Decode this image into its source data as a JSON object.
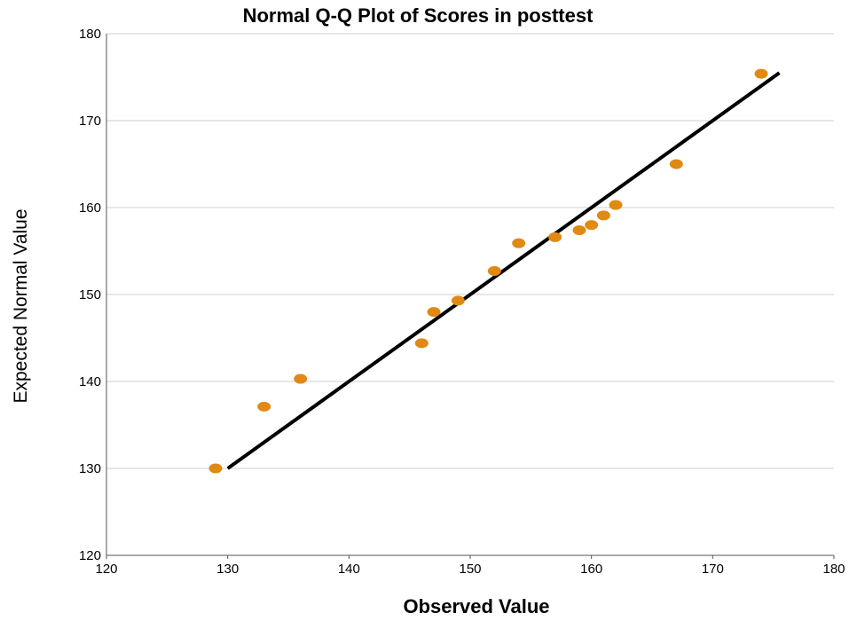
{
  "chart_data": {
    "type": "scatter",
    "title": "Normal Q-Q Plot of Scores in posttest",
    "xlabel": "Observed Value",
    "ylabel": "Expected Normal Value",
    "xlim": [
      120,
      180
    ],
    "ylim": [
      120,
      180
    ],
    "xticks": [
      120,
      130,
      140,
      150,
      160,
      170,
      180
    ],
    "yticks": [
      120,
      130,
      140,
      150,
      160,
      170,
      180
    ],
    "grid": "horizontal",
    "legend": "none",
    "point_color": "#E08A14",
    "line_color": "#000000",
    "points": [
      {
        "x": 129,
        "y": 130.0
      },
      {
        "x": 133,
        "y": 137.1
      },
      {
        "x": 136,
        "y": 140.3
      },
      {
        "x": 146,
        "y": 144.4
      },
      {
        "x": 147,
        "y": 148.0
      },
      {
        "x": 149,
        "y": 149.3
      },
      {
        "x": 152,
        "y": 152.7
      },
      {
        "x": 154,
        "y": 155.9
      },
      {
        "x": 157,
        "y": 156.6
      },
      {
        "x": 159,
        "y": 157.4
      },
      {
        "x": 160,
        "y": 158.0
      },
      {
        "x": 161,
        "y": 159.1
      },
      {
        "x": 162,
        "y": 160.3
      },
      {
        "x": 167,
        "y": 165.0
      },
      {
        "x": 174,
        "y": 175.4
      }
    ],
    "reference_line": {
      "x": [
        130,
        175.5
      ],
      "y": [
        130,
        175.5
      ]
    }
  }
}
